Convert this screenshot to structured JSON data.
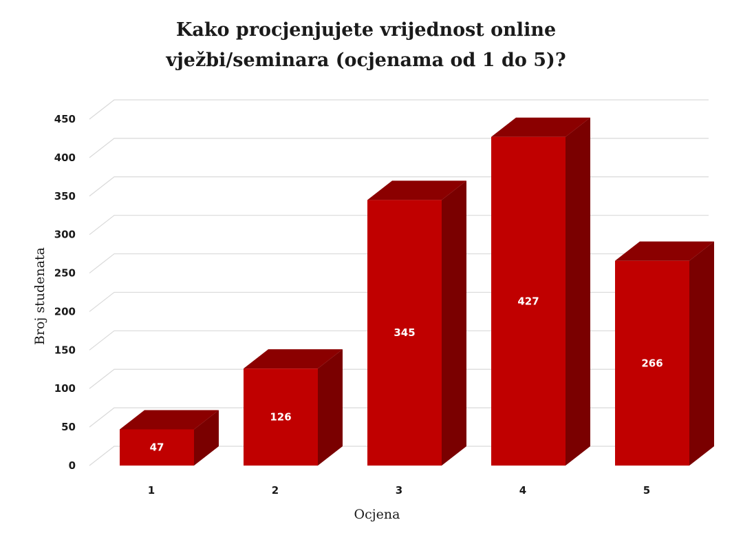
{
  "chart_data": {
    "type": "bar",
    "title_line1": "Kako procjenjujete vrijednost online",
    "title_line2": "vježbi/seminara (ocjenama od 1 do 5)?",
    "xlabel": "Ocjena",
    "ylabel": "Broj studenata",
    "categories": [
      "1",
      "2",
      "3",
      "4",
      "5"
    ],
    "values": [
      47,
      126,
      345,
      427,
      266
    ],
    "ylim": [
      0,
      450
    ],
    "yticks": [
      0,
      50,
      100,
      150,
      200,
      250,
      300,
      350,
      400,
      450
    ],
    "grid": true,
    "style": "3d-column",
    "colors": {
      "front": "#c00000",
      "top": "#8b0000",
      "side": "#7a0000",
      "label": "#ffffff"
    }
  }
}
